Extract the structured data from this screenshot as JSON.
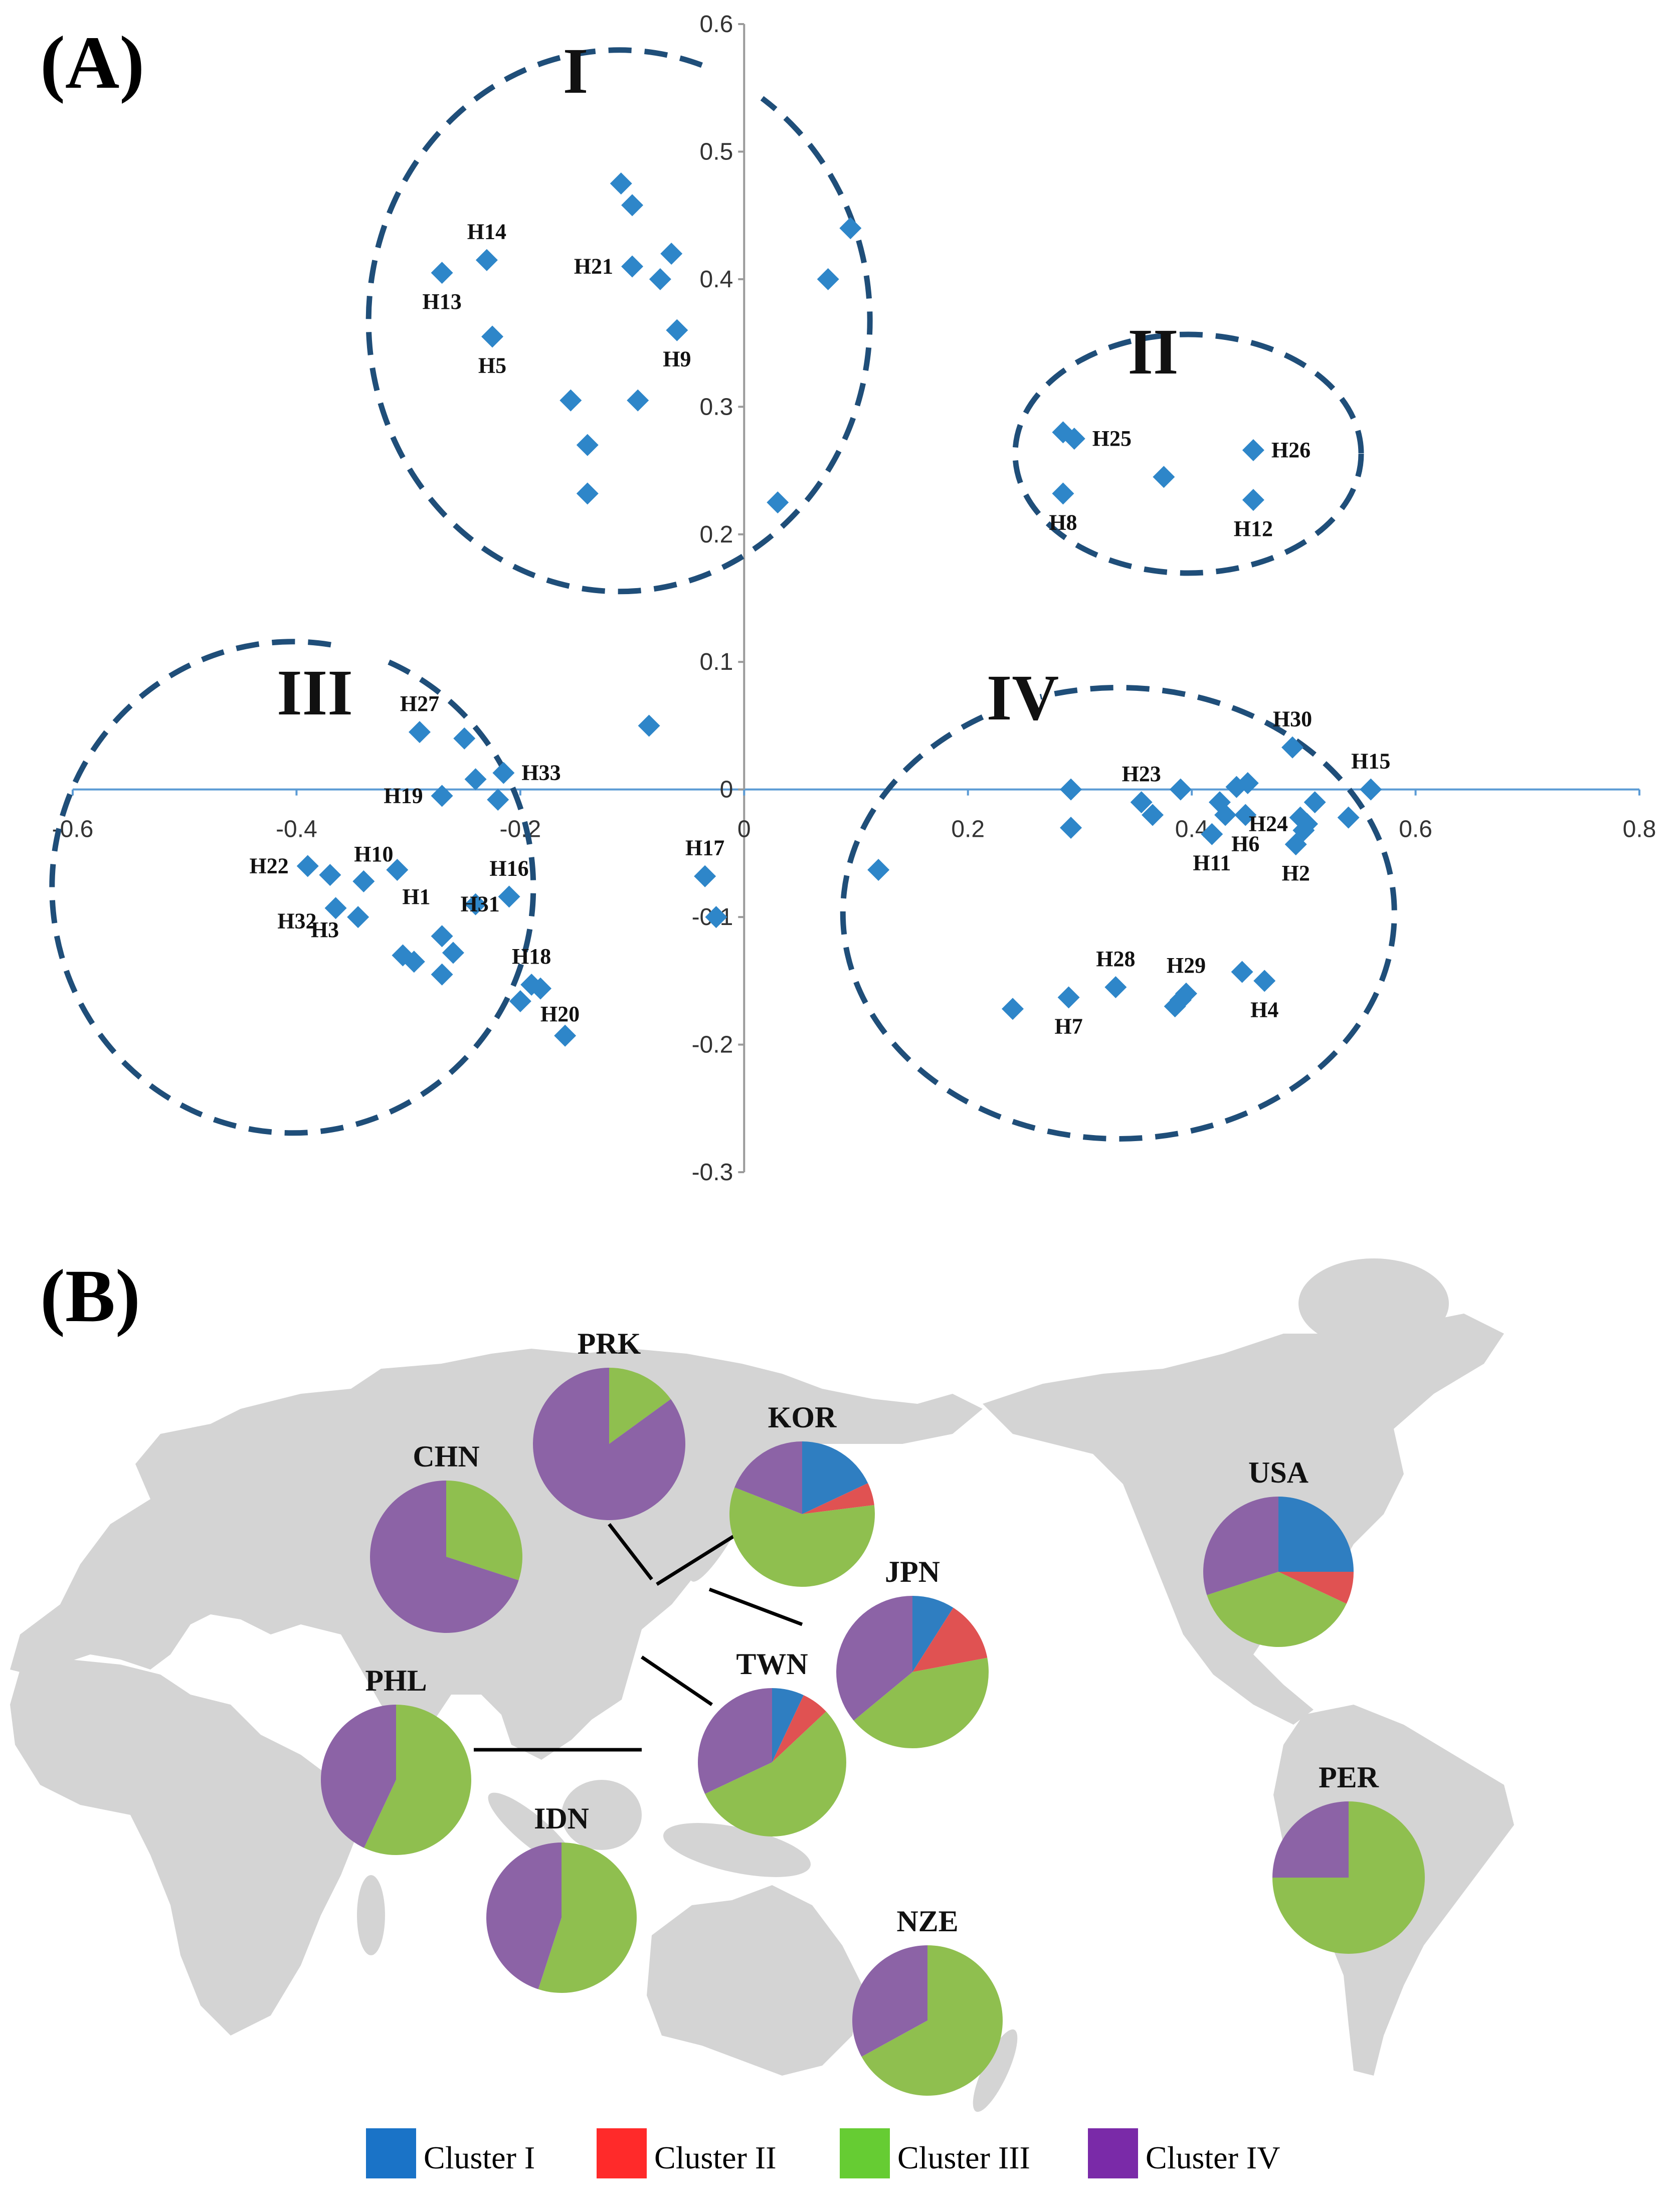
{
  "panel_a": {
    "label": "(A)",
    "cluster_labels": [
      "I",
      "II",
      "III",
      "IV"
    ]
  },
  "panel_b": {
    "label": "(B)",
    "legend": [
      {
        "name": "Cluster I",
        "color": "#1a73c7"
      },
      {
        "name": "Cluster II",
        "color": "#ff2a2a"
      },
      {
        "name": "Cluster III",
        "color": "#66cc33"
      },
      {
        "name": "Cluster IV",
        "color": "#7a2aa8"
      }
    ]
  },
  "colors": {
    "marker": "#2e86c9",
    "axis": "#5b9bd5",
    "cluster_outline": "#1f4e79",
    "map_land": "#d4d4d4",
    "pie_cluster_i": "#2f7ec1",
    "pie_cluster_ii": "#e05252",
    "pie_cluster_iii": "#8fbf4f",
    "pie_cluster_iv": "#8c63a6"
  },
  "chart_data": [
    {
      "type": "scatter",
      "xlim": [
        -0.6,
        0.8
      ],
      "ylim": [
        -0.3,
        0.6
      ],
      "x_ticks": [
        "-0.6",
        "-0.4",
        "-0.2",
        "0",
        "0.2",
        "0.4",
        "0.6",
        "0.8"
      ],
      "y_ticks": [
        "0.6",
        "0.5",
        "0.4",
        "0.3",
        "0.2",
        "0.1",
        "0",
        "-0.1",
        "-0.2",
        "-0.3"
      ],
      "points": [
        {
          "x": -0.27,
          "y": 0.405,
          "label": "H13"
        },
        {
          "x": -0.23,
          "y": 0.415,
          "label": "H14"
        },
        {
          "x": -0.225,
          "y": 0.355,
          "label": "H5"
        },
        {
          "x": -0.11,
          "y": 0.475,
          "label": ""
        },
        {
          "x": -0.1,
          "y": 0.458,
          "label": ""
        },
        {
          "x": -0.1,
          "y": 0.41,
          "label": "H21"
        },
        {
          "x": -0.065,
          "y": 0.42,
          "label": ""
        },
        {
          "x": -0.075,
          "y": 0.4,
          "label": ""
        },
        {
          "x": -0.06,
          "y": 0.36,
          "label": "H9"
        },
        {
          "x": -0.155,
          "y": 0.305,
          "label": ""
        },
        {
          "x": -0.095,
          "y": 0.305,
          "label": ""
        },
        {
          "x": -0.14,
          "y": 0.27,
          "label": ""
        },
        {
          "x": -0.14,
          "y": 0.232,
          "label": ""
        },
        {
          "x": 0.095,
          "y": 0.44,
          "label": ""
        },
        {
          "x": 0.075,
          "y": 0.4,
          "label": ""
        },
        {
          "x": 0.03,
          "y": 0.225,
          "label": ""
        },
        {
          "x": 0.285,
          "y": 0.28,
          "label": ""
        },
        {
          "x": 0.295,
          "y": 0.275,
          "label": "H25"
        },
        {
          "x": 0.285,
          "y": 0.232,
          "label": "H8"
        },
        {
          "x": 0.375,
          "y": 0.245,
          "label": ""
        },
        {
          "x": 0.455,
          "y": 0.266,
          "label": "H26"
        },
        {
          "x": 0.455,
          "y": 0.227,
          "label": "H12"
        },
        {
          "x": -0.29,
          "y": 0.045,
          "label": "H27"
        },
        {
          "x": -0.25,
          "y": 0.04,
          "label": ""
        },
        {
          "x": -0.24,
          "y": 0.008,
          "label": ""
        },
        {
          "x": -0.215,
          "y": 0.013,
          "label": "H33"
        },
        {
          "x": -0.22,
          "y": -0.008,
          "label": ""
        },
        {
          "x": -0.27,
          "y": -0.005,
          "label": "H19"
        },
        {
          "x": -0.085,
          "y": 0.05,
          "label": ""
        },
        {
          "x": -0.39,
          "y": -0.06,
          "label": "H22"
        },
        {
          "x": -0.37,
          "y": -0.067,
          "label": ""
        },
        {
          "x": -0.34,
          "y": -0.072,
          "label": "H10"
        },
        {
          "x": -0.365,
          "y": -0.093,
          "label": "H32"
        },
        {
          "x": -0.345,
          "y": -0.1,
          "label": "H3"
        },
        {
          "x": -0.31,
          "y": -0.063,
          "label": "H1"
        },
        {
          "x": -0.24,
          "y": -0.09,
          "label": "H31"
        },
        {
          "x": -0.27,
          "y": -0.115,
          "label": ""
        },
        {
          "x": -0.26,
          "y": -0.128,
          "label": ""
        },
        {
          "x": -0.305,
          "y": -0.13,
          "label": ""
        },
        {
          "x": -0.295,
          "y": -0.135,
          "label": ""
        },
        {
          "x": -0.27,
          "y": -0.145,
          "label": ""
        },
        {
          "x": -0.21,
          "y": -0.084,
          "label": "H16"
        },
        {
          "x": -0.19,
          "y": -0.153,
          "label": "H18"
        },
        {
          "x": -0.182,
          "y": -0.156,
          "label": ""
        },
        {
          "x": -0.2,
          "y": -0.166,
          "label": "H20"
        },
        {
          "x": -0.16,
          "y": -0.193,
          "label": ""
        },
        {
          "x": -0.035,
          "y": -0.068,
          "label": "H17"
        },
        {
          "x": -0.025,
          "y": -0.1,
          "label": ""
        },
        {
          "x": 0.12,
          "y": -0.063,
          "label": ""
        },
        {
          "x": 0.292,
          "y": 0.0,
          "label": ""
        },
        {
          "x": 0.292,
          "y": -0.03,
          "label": ""
        },
        {
          "x": 0.355,
          "y": -0.01,
          "label": "H23"
        },
        {
          "x": 0.365,
          "y": -0.02,
          "label": ""
        },
        {
          "x": 0.39,
          "y": 0.0,
          "label": ""
        },
        {
          "x": 0.44,
          "y": 0.002,
          "label": ""
        },
        {
          "x": 0.45,
          "y": 0.005,
          "label": ""
        },
        {
          "x": 0.425,
          "y": -0.01,
          "label": ""
        },
        {
          "x": 0.43,
          "y": -0.02,
          "label": ""
        },
        {
          "x": 0.448,
          "y": -0.02,
          "label": "H6"
        },
        {
          "x": 0.418,
          "y": -0.035,
          "label": "H11"
        },
        {
          "x": 0.49,
          "y": 0.033,
          "label": "H30"
        },
        {
          "x": 0.497,
          "y": -0.022,
          "label": ""
        },
        {
          "x": 0.503,
          "y": -0.027,
          "label": "H24"
        },
        {
          "x": 0.5,
          "y": -0.032,
          "label": ""
        },
        {
          "x": 0.51,
          "y": -0.01,
          "label": ""
        },
        {
          "x": 0.493,
          "y": -0.043,
          "label": "H2"
        },
        {
          "x": 0.56,
          "y": 0.0,
          "label": "H15"
        },
        {
          "x": 0.54,
          "y": -0.022,
          "label": ""
        },
        {
          "x": 0.24,
          "y": -0.172,
          "label": ""
        },
        {
          "x": 0.29,
          "y": -0.163,
          "label": "H7"
        },
        {
          "x": 0.332,
          "y": -0.155,
          "label": "H28"
        },
        {
          "x": 0.385,
          "y": -0.17,
          "label": ""
        },
        {
          "x": 0.39,
          "y": -0.165,
          "label": ""
        },
        {
          "x": 0.395,
          "y": -0.16,
          "label": "H29"
        },
        {
          "x": 0.445,
          "y": -0.143,
          "label": ""
        },
        {
          "x": 0.465,
          "y": -0.15,
          "label": "H4"
        }
      ]
    },
    {
      "type": "pie",
      "slice_order": [
        "Cluster I",
        "Cluster II",
        "Cluster III",
        "Cluster IV"
      ],
      "pies": [
        {
          "label": "CHN",
          "values": [
            0,
            0,
            30,
            70
          ]
        },
        {
          "label": "PRK",
          "values": [
            0,
            0,
            15,
            85
          ]
        },
        {
          "label": "KOR",
          "values": [
            18,
            5,
            58,
            19
          ]
        },
        {
          "label": "JPN",
          "values": [
            9,
            13,
            42,
            36
          ]
        },
        {
          "label": "TWN",
          "values": [
            7,
            6,
            55,
            32
          ]
        },
        {
          "label": "PHL",
          "values": [
            0,
            0,
            57,
            43
          ]
        },
        {
          "label": "IDN",
          "values": [
            0,
            0,
            55,
            45
          ]
        },
        {
          "label": "NZE",
          "values": [
            0,
            0,
            67,
            33
          ]
        },
        {
          "label": "USA",
          "values": [
            25,
            7,
            38,
            30
          ]
        },
        {
          "label": "PER",
          "values": [
            0,
            0,
            75,
            25
          ]
        }
      ]
    }
  ]
}
